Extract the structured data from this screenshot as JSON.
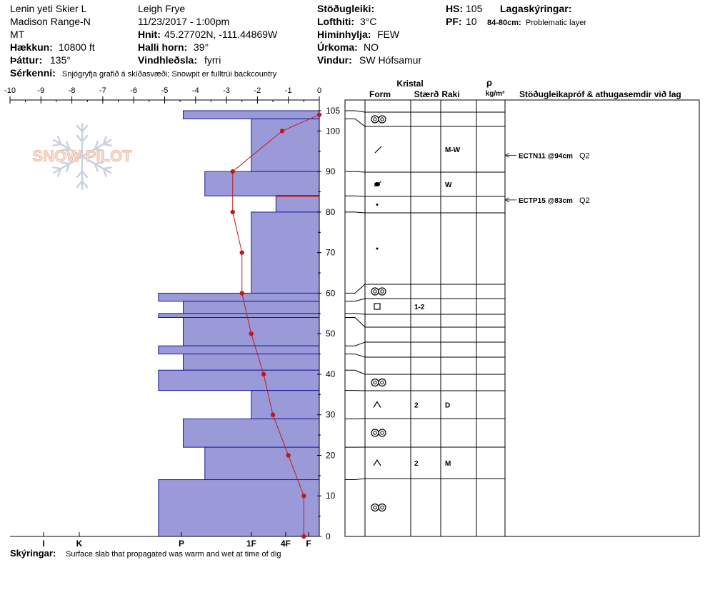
{
  "header": {
    "site": "Lenin yeti Skier L",
    "range": "Madison Range-N",
    "state": "MT",
    "elevation_label": "Hækkun:",
    "elevation": "10800 ft",
    "aspect_label": "Þáttur:",
    "aspect": "135°",
    "observer": "Leigh Frye",
    "datetime": "11/23/2017 - 1:00pm",
    "coords_label": "Hnit:",
    "coords": "45.27702N, -111.44869W",
    "slope_label": "Halli horn:",
    "slope": "39°",
    "wind_loading_label": "Vindhleðsla:",
    "wind_loading": "fyrri",
    "stability_label": "Stöðugleiki:",
    "stability": "",
    "air_temp_label": "Lofthiti:",
    "air_temp": "3°C",
    "sky_label": "Himinhylja:",
    "sky": "FEW",
    "precip_label": "Úrkoma:",
    "precip": "NO",
    "wind_label": "Vindur:",
    "wind": "SW Hófsamur",
    "hs_label": "HS:",
    "hs": "105",
    "pf_label": "PF:",
    "pf": "10",
    "layer_notes_label": "Lagaskýringar:",
    "layer_note_range": "84-80cm:",
    "layer_note_text": "Problematic layer",
    "specifics_label": "Sérkenni:",
    "specifics": "Snjógryfja grafið á skíðasvæði; Snowpit er fulltrúi backcountry",
    "comments_label": "Skýringar:",
    "comments": "Surface slab that propagated was warm and wet at time of dig"
  },
  "table_headers": {
    "crystal": "Kristal",
    "form": "Form",
    "size": "Stærð",
    "moisture": "Raki",
    "rho": "ρ",
    "density_unit": "kg/m³",
    "tests": "Stöðugleikapróf & athugasemdir við lag"
  },
  "logo_text": "SNOW PILOT",
  "colors": {
    "hardness_fill": "#9a9ad8",
    "hardness_stroke": "#1a1a9a",
    "temp_line": "#c0181c",
    "problem_layer": "#c0181c"
  },
  "chart_data": {
    "type": "snowpit",
    "temperature_axis": {
      "ticks": [
        "-10",
        "-9",
        "-8",
        "-7",
        "-6",
        "-5",
        "-4",
        "-3",
        "-2",
        "-1",
        "0"
      ],
      "range": [
        -10,
        0
      ]
    },
    "hardness_axis": {
      "ticks": [
        "I",
        "K",
        "P",
        "1F",
        "4F",
        "F"
      ]
    },
    "depth_axis": {
      "ticks": [
        "105",
        "100",
        "90",
        "80",
        "70",
        "60",
        "50",
        "40",
        "30",
        "20",
        "10",
        "0"
      ],
      "range": [
        0,
        105
      ]
    },
    "hardness_layers": [
      {
        "top": 105,
        "bottom": 103,
        "temp_extent": -4.4
      },
      {
        "top": 103,
        "bottom": 90,
        "temp_extent": -2.2
      },
      {
        "top": 90,
        "bottom": 84,
        "temp_extent": -3.7
      },
      {
        "top": 84,
        "bottom": 80,
        "temp_extent": -1.4
      },
      {
        "top": 80,
        "bottom": 60,
        "temp_extent": -2.2
      },
      {
        "top": 60,
        "bottom": 58,
        "temp_extent": -5.2
      },
      {
        "top": 58,
        "bottom": 55,
        "temp_extent": -4.4
      },
      {
        "top": 55,
        "bottom": 54,
        "temp_extent": -5.2
      },
      {
        "top": 54,
        "bottom": 47,
        "temp_extent": -4.4
      },
      {
        "top": 47,
        "bottom": 45,
        "temp_extent": -5.2
      },
      {
        "top": 45,
        "bottom": 41,
        "temp_extent": -4.4
      },
      {
        "top": 41,
        "bottom": 36,
        "temp_extent": -5.2
      },
      {
        "top": 36,
        "bottom": 29,
        "temp_extent": -2.2
      },
      {
        "top": 29,
        "bottom": 22,
        "temp_extent": -4.4
      },
      {
        "top": 22,
        "bottom": 14,
        "temp_extent": -3.7
      },
      {
        "top": 14,
        "bottom": 0,
        "temp_extent": -5.2
      }
    ],
    "problem_layer_depth": 84,
    "temperature_profile": [
      {
        "depth": 104,
        "temp": 0.0
      },
      {
        "depth": 100,
        "temp": -1.2
      },
      {
        "depth": 90,
        "temp": -2.8
      },
      {
        "depth": 80,
        "temp": -2.8
      },
      {
        "depth": 70,
        "temp": -2.5
      },
      {
        "depth": 60,
        "temp": -2.5
      },
      {
        "depth": 50,
        "temp": -2.2
      },
      {
        "depth": 40,
        "temp": -1.8
      },
      {
        "depth": 30,
        "temp": -1.5
      },
      {
        "depth": 20,
        "temp": -1.0
      },
      {
        "depth": 10,
        "temp": -0.5
      },
      {
        "depth": 0,
        "temp": -0.5
      }
    ],
    "layer_boundaries": [
      105,
      103,
      90,
      84,
      80,
      60,
      58,
      55,
      54,
      47,
      45,
      41,
      36,
      29,
      22,
      14,
      0
    ],
    "layers": [
      {
        "top": 105,
        "bottom": 103,
        "form": "rounded",
        "size": "",
        "moisture": ""
      },
      {
        "top": 103,
        "bottom": 90,
        "form": "decomposing",
        "size": "",
        "moisture": "M-W"
      },
      {
        "top": 90,
        "bottom": 84,
        "form": "melt",
        "size": "",
        "moisture": "W"
      },
      {
        "top": 84,
        "bottom": 80,
        "form": "dot",
        "size": "",
        "moisture": ""
      },
      {
        "top": 80,
        "bottom": 60,
        "form": "dot",
        "size": "",
        "moisture": ""
      },
      {
        "top": 60,
        "bottom": 58,
        "form": "rounded",
        "size": "",
        "moisture": ""
      },
      {
        "top": 58,
        "bottom": 55,
        "form": "faceted",
        "size": "1-2",
        "moisture": ""
      },
      {
        "top": 55,
        "bottom": 54,
        "form": "",
        "size": "",
        "moisture": ""
      },
      {
        "top": 54,
        "bottom": 47,
        "form": "",
        "size": "",
        "moisture": ""
      },
      {
        "top": 47,
        "bottom": 45,
        "form": "",
        "size": "",
        "moisture": ""
      },
      {
        "top": 45,
        "bottom": 41,
        "form": "",
        "size": "",
        "moisture": ""
      },
      {
        "top": 41,
        "bottom": 36,
        "form": "rounded",
        "size": "",
        "moisture": ""
      },
      {
        "top": 36,
        "bottom": 29,
        "form": "depth-hoar",
        "size": "2",
        "moisture": "D"
      },
      {
        "top": 29,
        "bottom": 22,
        "form": "rounded",
        "size": "",
        "moisture": ""
      },
      {
        "top": 22,
        "bottom": 14,
        "form": "depth-hoar",
        "size": "2",
        "moisture": "M"
      },
      {
        "top": 14,
        "bottom": 0,
        "form": "rounded",
        "size": "",
        "moisture": ""
      }
    ],
    "stability_tests": [
      {
        "depth": 94,
        "result": "ECTN11 @94cm",
        "quality": "Q2"
      },
      {
        "depth": 83,
        "result": "ECTP15 @83cm",
        "quality": "Q2"
      }
    ]
  }
}
